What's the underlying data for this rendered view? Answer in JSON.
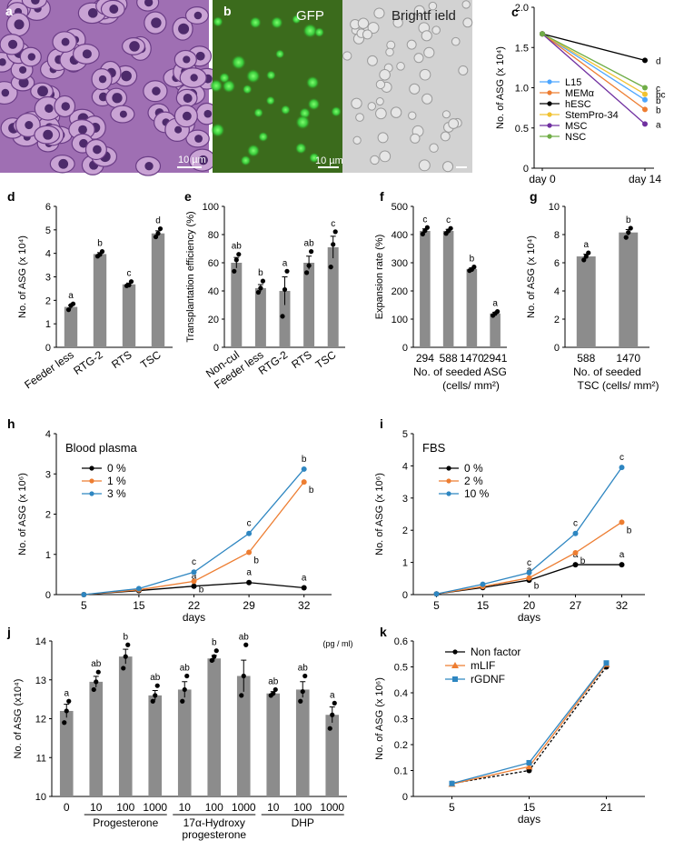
{
  "panels": {
    "a": {
      "letter": "a",
      "scale": "10 µm"
    },
    "b": {
      "letter": "b",
      "gfp": "GFP",
      "bright": "Brightf ield",
      "scale": "10 µm"
    }
  },
  "colors": {
    "bar": "#8c8c8c",
    "black": "#000000",
    "orange": "#ed7d31",
    "blue": "#2e86c1",
    "yellow": "#f1c232",
    "purple": "#7030a0",
    "green": "#70ad47",
    "lightblue": "#4da6ff",
    "tissue": "#b07bbf",
    "gfp_bg": "#3d6b1f",
    "gfp_cell": "#3ec63a",
    "bf_bg": "#cfcfcf"
  },
  "chart_data": [
    {
      "panel": "c",
      "type": "line",
      "ylabel": "No. of ASG (x 10⁴)",
      "ylim": [
        0,
        2
      ],
      "yticks": [
        0,
        0.5,
        1,
        1.5,
        2
      ],
      "ytick_labels": [
        "0",
        "0.5",
        "1.0",
        "1.5",
        "2.0"
      ],
      "categories": [
        "day 0",
        "day 14"
      ],
      "series": [
        {
          "name": "L15",
          "values": [
            1.67,
            0.85
          ],
          "color": "#4da6ff",
          "sig": "b"
        },
        {
          "name": "MEMα",
          "values": [
            1.67,
            0.73
          ],
          "color": "#ed7d31",
          "sig": "b"
        },
        {
          "name": "hESC",
          "values": [
            1.67,
            1.34
          ],
          "color": "#000000",
          "sig": "d"
        },
        {
          "name": "StemPro-34",
          "values": [
            1.67,
            0.92
          ],
          "color": "#f1c232",
          "sig": "bc"
        },
        {
          "name": "MSC",
          "values": [
            1.67,
            0.55
          ],
          "color": "#7030a0",
          "sig": "a"
        },
        {
          "name": "NSC",
          "values": [
            1.67,
            1.0
          ],
          "color": "#70ad47",
          "sig": "c"
        }
      ]
    },
    {
      "panel": "d",
      "type": "bar",
      "ylabel": "No. of ASG (x 10⁴)",
      "ylim": [
        0,
        6
      ],
      "yticks": [
        0,
        1,
        2,
        3,
        4,
        5,
        6
      ],
      "categories": [
        "Feeder less",
        "RTG-2",
        "RTS",
        "TSC"
      ],
      "values": [
        1.72,
        3.97,
        2.68,
        4.85
      ],
      "points": [
        [
          1.6,
          1.78,
          1.85
        ],
        [
          3.88,
          3.95,
          4.08
        ],
        [
          2.62,
          2.65,
          2.8
        ],
        [
          4.7,
          4.85,
          5.05
        ]
      ],
      "sig": [
        "a",
        "b",
        "c",
        "d"
      ]
    },
    {
      "panel": "e",
      "type": "bar",
      "ylabel": "Transplantation efficiency (%)",
      "ylim": [
        0,
        100
      ],
      "yticks": [
        0,
        20,
        40,
        60,
        80,
        100
      ],
      "categories": [
        "Non-cul",
        "Feeder less",
        "RTG-2",
        "RTS",
        "TSC"
      ],
      "values": [
        60,
        42,
        40,
        60,
        71
      ],
      "points": [
        [
          54,
          62,
          66
        ],
        [
          39,
          42,
          47
        ],
        [
          22,
          41,
          54
        ],
        [
          53,
          58,
          68
        ],
        [
          57,
          73,
          82
        ]
      ],
      "sig": [
        "ab",
        "b",
        "a",
        "ab",
        "c"
      ]
    },
    {
      "panel": "f",
      "type": "bar",
      "ylabel": "Expansion rate (%)",
      "ylim": [
        0,
        500
      ],
      "yticks": [
        0,
        100,
        200,
        300,
        400,
        500
      ],
      "categories": [
        "294",
        "588",
        "1470",
        "2941"
      ],
      "xlabel": "No. of seeded ASG",
      "xlabel2": "(cells/ mm²)",
      "values": [
        413,
        413,
        278,
        120
      ],
      "points": [
        [
          402,
          414,
          425
        ],
        [
          404,
          413,
          422
        ],
        [
          272,
          276,
          285
        ],
        [
          113,
          120,
          127
        ]
      ],
      "sig": [
        "c",
        "c",
        "b",
        "a"
      ]
    },
    {
      "panel": "g",
      "type": "bar",
      "ylabel": "No. of ASG (x 10⁴)",
      "ylim": [
        0,
        10
      ],
      "yticks": [
        0,
        2,
        4,
        6,
        8,
        10
      ],
      "categories": [
        "588",
        "1470"
      ],
      "xlabel": "No. of seeded",
      "xlabel2": "TSC (cells/ mm²)",
      "values": [
        6.45,
        8.15
      ],
      "points": [
        [
          6.2,
          6.45,
          6.7
        ],
        [
          7.8,
          8.15,
          8.45
        ]
      ],
      "sig": [
        "a",
        "b"
      ]
    },
    {
      "panel": "h",
      "type": "line",
      "title": "Blood plasma",
      "ylabel": "No. of ASG (x 10⁶)",
      "xlabel": "days",
      "ylim": [
        0,
        4
      ],
      "yticks": [
        0,
        1,
        2,
        3,
        4
      ],
      "categories": [
        "5",
        "15",
        "22",
        "29",
        "32"
      ],
      "series": [
        {
          "name": "0 %",
          "values": [
            0.0,
            0.1,
            0.21,
            0.3,
            0.17
          ],
          "color": "#000000",
          "sig": [
            "",
            "",
            "a",
            "a",
            "a"
          ]
        },
        {
          "name": "1 %",
          "values": [
            0.0,
            0.12,
            0.33,
            1.05,
            2.8
          ],
          "color": "#ed7d31",
          "sig": [
            "",
            "",
            "b",
            "b",
            "b"
          ]
        },
        {
          "name": "3 %",
          "values": [
            0.0,
            0.15,
            0.56,
            1.52,
            3.12
          ],
          "color": "#2e86c1",
          "sig": [
            "",
            "",
            "c",
            "c",
            "b"
          ]
        }
      ]
    },
    {
      "panel": "i",
      "type": "line",
      "title": "FBS",
      "ylabel": "No. of ASG (x 10⁶)",
      "xlabel": "days",
      "ylim": [
        0,
        5
      ],
      "yticks": [
        0,
        1,
        2,
        3,
        4,
        5
      ],
      "categories": [
        "5",
        "15",
        "20",
        "27",
        "32"
      ],
      "series": [
        {
          "name": "0 %",
          "values": [
            0.02,
            0.22,
            0.45,
            0.93,
            0.93
          ],
          "color": "#000000",
          "sig": [
            "",
            "",
            "a",
            "a",
            "a"
          ]
        },
        {
          "name": "2 %",
          "values": [
            0.02,
            0.25,
            0.52,
            1.3,
            2.25
          ],
          "color": "#ed7d31",
          "sig": [
            "",
            "",
            "b",
            "b",
            "b"
          ]
        },
        {
          "name": "10 %",
          "values": [
            0.02,
            0.32,
            0.68,
            1.9,
            3.95
          ],
          "color": "#2e86c1",
          "sig": [
            "",
            "",
            "c",
            "c",
            "c"
          ]
        }
      ]
    },
    {
      "panel": "j",
      "type": "bar",
      "ylabel": "No. of ASG (x10⁴)",
      "unit": "(pg / ml)",
      "ylim": [
        10,
        14
      ],
      "yticks": [
        10,
        11,
        12,
        13,
        14
      ],
      "categories": [
        "0",
        "10",
        "100",
        "1000",
        "10",
        "100",
        "1000",
        "10",
        "100",
        "1000"
      ],
      "groups": [
        {
          "label": "Progesterone",
          "label2": "",
          "start": 1,
          "end": 3
        },
        {
          "label": "17α-Hydroxy",
          "label2": "progesterone",
          "start": 4,
          "end": 6
        },
        {
          "label": "DHP",
          "label2": "",
          "start": 7,
          "end": 9
        }
      ],
      "values": [
        12.2,
        12.95,
        13.6,
        12.6,
        12.75,
        13.55,
        13.1,
        12.65,
        12.75,
        12.1
      ],
      "points": [
        [
          11.9,
          12.2,
          12.45
        ],
        [
          12.75,
          12.95,
          13.2
        ],
        [
          13.3,
          13.6,
          13.9
        ],
        [
          12.45,
          12.6,
          12.85
        ],
        [
          12.45,
          12.75,
          13.1
        ],
        [
          13.5,
          13.6,
          13.75
        ],
        [
          12.6,
          13.1,
          13.9
        ],
        [
          12.6,
          12.65,
          12.75
        ],
        [
          12.45,
          12.7,
          13.1
        ],
        [
          11.75,
          12.1,
          12.4
        ]
      ],
      "sig": [
        "a",
        "ab",
        "b",
        "ab",
        "ab",
        "b",
        "ab",
        "ab",
        "ab",
        "a"
      ]
    },
    {
      "panel": "k",
      "type": "line",
      "ylabel": "No. of ASG (x 10⁶)",
      "xlabel": "days",
      "ylim": [
        0,
        0.6
      ],
      "yticks": [
        0,
        0.1,
        0.2,
        0.3,
        0.4,
        0.5,
        0.6
      ],
      "categories": [
        "5",
        "15",
        "21"
      ],
      "series": [
        {
          "name": "Non factor",
          "values": [
            0.05,
            0.1,
            0.5
          ],
          "color": "#000000",
          "marker": "circle"
        },
        {
          "name": "mLIF",
          "values": [
            0.048,
            0.115,
            0.51
          ],
          "color": "#ed7d31",
          "marker": "triangle"
        },
        {
          "name": "rGDNF",
          "values": [
            0.05,
            0.13,
            0.515
          ],
          "color": "#2e86c1",
          "marker": "square"
        }
      ]
    }
  ]
}
